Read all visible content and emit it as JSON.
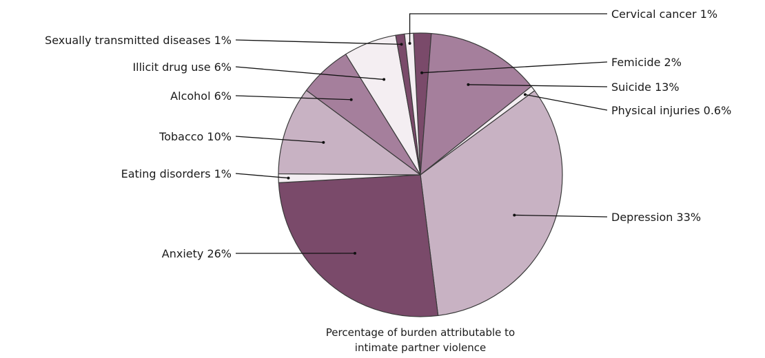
{
  "chart_data": {
    "type": "pie",
    "title": "",
    "caption": [
      "Percentage of burden attributable to",
      "intimate partner violence"
    ],
    "unit": "%",
    "slices": [
      {
        "label": "Femicide",
        "value": 2,
        "display": "Femicide 2%",
        "color": "#7a4a6a"
      },
      {
        "label": "Suicide",
        "value": 13,
        "display": "Suicide 13%",
        "color": "#a57f9c"
      },
      {
        "label": "Physical injuries",
        "value": 0.6,
        "display": "Physical injuries 0.6%",
        "color": "#f4eef2"
      },
      {
        "label": "Depression",
        "value": 33,
        "display": "Depression 33%",
        "color": "#c8b2c3"
      },
      {
        "label": "Anxiety",
        "value": 26,
        "display": "Anxiety 26%",
        "color": "#7a4a6a"
      },
      {
        "label": "Eating disorders",
        "value": 1,
        "display": "Eating disorders 1%",
        "color": "#f4eef2"
      },
      {
        "label": "Tobacco",
        "value": 10,
        "display": "Tobacco 10%",
        "color": "#c8b2c3"
      },
      {
        "label": "Alcohol",
        "value": 6,
        "display": "Alcohol 6%",
        "color": "#a57f9c"
      },
      {
        "label": "Illicit drug use",
        "value": 6,
        "display": "Illicit drug use 6%",
        "color": "#f4eef2"
      },
      {
        "label": "Sexually transmitted diseases",
        "value": 1,
        "display": "Sexually transmitted diseases 1%",
        "color": "#7a4a6a"
      },
      {
        "label": "Cervical cancer",
        "value": 1,
        "display": "Cervical cancer 1%",
        "color": "#f4eef2"
      }
    ]
  }
}
